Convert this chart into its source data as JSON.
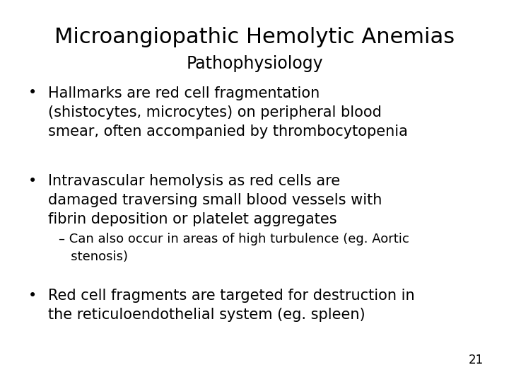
{
  "title": "Microangiopathic Hemolytic Anemias",
  "subtitle": "Pathophysiology",
  "bullet1_dot": "•",
  "bullet1_text": "Hallmarks are red cell fragmentation\n(shistocytes, microcytes) on peripheral blood\nsmear, often accompanied by thrombocytopenia",
  "bullet2_dot": "•",
  "bullet2_text": "Intravascular hemolysis as red cells are\ndamaged traversing small blood vessels with\nfibrin deposition or platelet aggregates",
  "subbullet_text": "– Can also occur in areas of high turbulence (eg. Aortic\n   stenosis)",
  "bullet3_dot": "•",
  "bullet3_text": "Red cell fragments are targeted for destruction in\nthe reticuloendothelial system (eg. spleen)",
  "page_number": "21",
  "bg_color": "#ffffff",
  "text_color": "#000000",
  "title_fontsize": 22,
  "subtitle_fontsize": 17,
  "bullet_fontsize": 15,
  "subbullet_fontsize": 13,
  "page_fontsize": 12
}
